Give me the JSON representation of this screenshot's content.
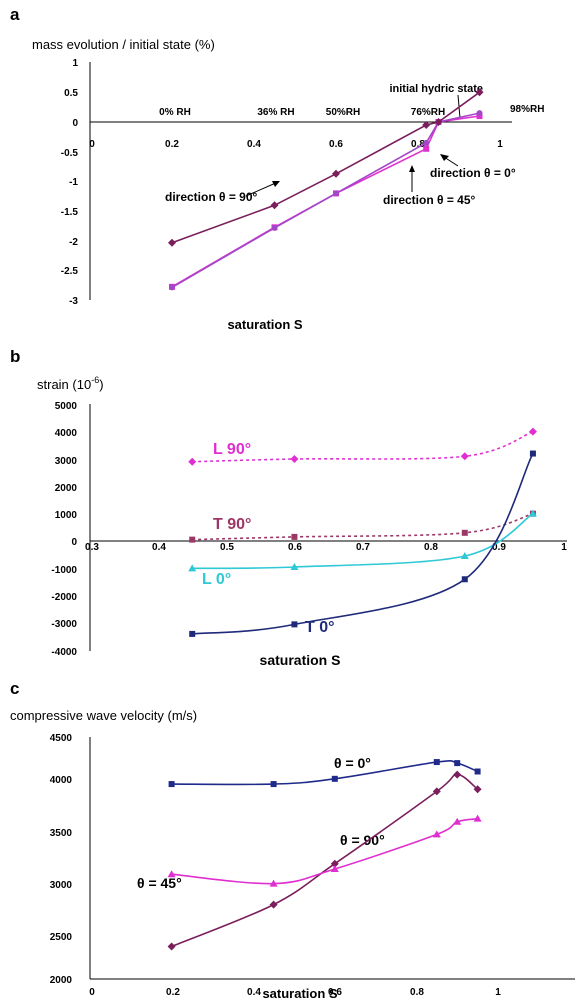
{
  "chart_data": [
    {
      "panel": "a",
      "type": "line",
      "ylabel": "mass evolution / initial state (%)",
      "xlabel": "saturation S",
      "xlim": [
        0,
        1
      ],
      "ylim": [
        -3,
        1
      ],
      "xticks": [
        "0",
        "0.2",
        "0.4",
        "0.6",
        "0.8",
        "1"
      ],
      "yticks": [
        "1",
        "0.5",
        "0",
        "-0.5",
        "-1",
        "-1.5",
        "-2",
        "-2.5",
        "-3"
      ],
      "series": [
        {
          "name": "direction θ = 0°",
          "color": "#e02fd0",
          "marker": "square",
          "x": [
            0.2,
            0.45,
            0.6,
            0.82,
            0.85,
            0.95
          ],
          "y": [
            -2.77,
            -1.77,
            -1.2,
            -0.45,
            0.0,
            0.1
          ]
        },
        {
          "name": "direction θ = 45°",
          "color": "#a347c8",
          "marker": "circle",
          "x": [
            0.2,
            0.45,
            0.6,
            0.82,
            0.85,
            0.95
          ],
          "y": [
            -2.78,
            -1.78,
            -1.2,
            -0.35,
            0.0,
            0.15
          ]
        },
        {
          "name": "direction θ = 90°",
          "color": "#7a1f5c",
          "marker": "diamond",
          "x": [
            0.2,
            0.45,
            0.6,
            0.82,
            0.85,
            0.95
          ],
          "y": [
            -2.03,
            -1.4,
            -0.87,
            -0.05,
            0.0,
            0.5
          ]
        }
      ],
      "annotations": [
        {
          "text": "0% RH"
        },
        {
          "text": "36% RH"
        },
        {
          "text": "50%RH"
        },
        {
          "text": "76%RH"
        },
        {
          "text": "98%RH"
        },
        {
          "text": "initial hydric state"
        },
        {
          "text": "direction θ = 90°"
        },
        {
          "text": "direction θ = 0°"
        },
        {
          "text": "direction θ = 45°"
        }
      ]
    },
    {
      "panel": "b",
      "type": "line",
      "ylabel": "strain (10",
      "ylabel_sup": "-6",
      "ylabel_end": ")",
      "xlabel": "saturation S",
      "xlim": [
        0.3,
        1
      ],
      "ylim": [
        -4000,
        5000
      ],
      "xticks": [
        "0.3",
        "0.4",
        "0.5",
        "0.6",
        "0.7",
        "0.8",
        "0.9",
        "1"
      ],
      "yticks": [
        "5000",
        "4000",
        "3000",
        "2000",
        "1000",
        "0",
        "-1000",
        "-2000",
        "-3000",
        "-4000"
      ],
      "series": [
        {
          "name": "L 90°",
          "color": "#e02fd0",
          "marker": "diamond",
          "dashed": true,
          "x": [
            0.45,
            0.6,
            0.85,
            0.95
          ],
          "y": [
            2900,
            3000,
            3100,
            4000
          ]
        },
        {
          "name": "T 90°",
          "color": "#9c3866",
          "marker": "square",
          "dashed": true,
          "x": [
            0.45,
            0.6,
            0.85,
            0.95
          ],
          "y": [
            50,
            150,
            300,
            1000
          ]
        },
        {
          "name": "L 0°",
          "color": "#2fc9d6",
          "marker": "triangle",
          "x": [
            0.45,
            0.6,
            0.85,
            0.95
          ],
          "y": [
            -1000,
            -950,
            -550,
            1000
          ]
        },
        {
          "name": "T 0°",
          "color": "#1f2a7a",
          "marker": "square",
          "x": [
            0.45,
            0.6,
            0.85,
            0.95
          ],
          "y": [
            -3400,
            -3050,
            -1400,
            3200
          ]
        }
      ]
    },
    {
      "panel": "c",
      "type": "line",
      "ylabel": "compressive wave velocity (m/s)",
      "xlabel": "saturation S",
      "xlim": [
        0,
        1.2
      ],
      "ylim": [
        2000,
        4500
      ],
      "xticks": [
        "0",
        "0.2",
        "0.4",
        "0.6",
        "0.8",
        "1"
      ],
      "yticks": [
        "4500",
        "4000",
        "3500",
        "3000",
        "2500",
        "2000"
      ],
      "series": [
        {
          "name": "θ = 0°",
          "color": "#1f2a8a",
          "marker": "square",
          "x": [
            0.2,
            0.45,
            0.6,
            0.85,
            0.9,
            0.95
          ],
          "y": [
            3860,
            3860,
            3910,
            4070,
            4060,
            3980
          ]
        },
        {
          "name": "θ = 90°",
          "color": "#7a1f5c",
          "marker": "diamond",
          "x": [
            0.2,
            0.45,
            0.6,
            0.85,
            0.9,
            0.95
          ],
          "y": [
            2310,
            2710,
            3100,
            3790,
            3950,
            3810
          ]
        },
        {
          "name": "θ = 45°",
          "color": "#e02fd0",
          "marker": "triangle",
          "x": [
            0.2,
            0.45,
            0.6,
            0.85,
            0.9,
            0.95
          ],
          "y": [
            3000,
            2910,
            3050,
            3380,
            3500,
            3530
          ]
        }
      ]
    }
  ]
}
